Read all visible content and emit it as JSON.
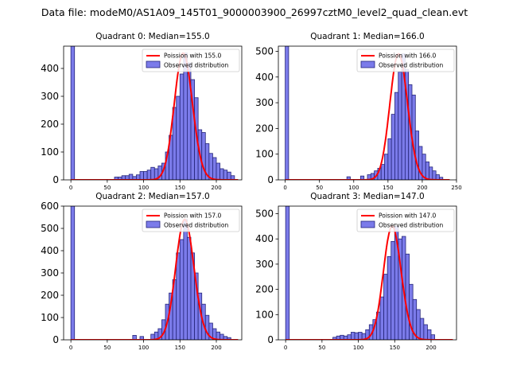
{
  "colors": {
    "poisson": "#ff0000",
    "bar_fill": "#7b7bea",
    "bar_edge": "#25257a",
    "axis": "#000000"
  },
  "chart_data": {
    "suptitle": "Data file: modeM0/AS1A09_145T01_9000003900_26997cztM0_level2_quad_clean.evt",
    "panels": [
      {
        "type": "bar",
        "title": "Quadrant 0: Median=155.0",
        "median": 155.0,
        "xlim": [
          -10,
          235
        ],
        "ylim": [
          0,
          480
        ],
        "xticks": [
          "0",
          "50",
          "100",
          "150",
          "200"
        ],
        "yticks": [
          "0",
          "100",
          "200",
          "300",
          "400"
        ],
        "bin_width": 5,
        "bins": [
          [
            0,
            480
          ],
          [
            60,
            10
          ],
          [
            65,
            10
          ],
          [
            70,
            15
          ],
          [
            75,
            15
          ],
          [
            80,
            20
          ],
          [
            85,
            12
          ],
          [
            90,
            18
          ],
          [
            95,
            30
          ],
          [
            100,
            30
          ],
          [
            105,
            35
          ],
          [
            110,
            45
          ],
          [
            115,
            40
          ],
          [
            120,
            50
          ],
          [
            125,
            60
          ],
          [
            130,
            100
          ],
          [
            135,
            160
          ],
          [
            140,
            260
          ],
          [
            145,
            300
          ],
          [
            150,
            380
          ],
          [
            155,
            455
          ],
          [
            160,
            420
          ],
          [
            165,
            360
          ],
          [
            170,
            295
          ],
          [
            175,
            180
          ],
          [
            180,
            170
          ],
          [
            185,
            130
          ],
          [
            190,
            95
          ],
          [
            195,
            80
          ],
          [
            200,
            60
          ],
          [
            205,
            40
          ],
          [
            210,
            35
          ],
          [
            215,
            28
          ],
          [
            220,
            15
          ]
        ],
        "legend": [
          "Poission with 155.0",
          "Observed distribution"
        ]
      },
      {
        "type": "bar",
        "title": "Quadrant 1: Median=166.0",
        "median": 166.0,
        "xlim": [
          -10,
          250
        ],
        "ylim": [
          0,
          520
        ],
        "xticks": [
          "0",
          "50",
          "100",
          "150",
          "200",
          "250"
        ],
        "yticks": [
          "0",
          "100",
          "200",
          "300",
          "400",
          "500"
        ],
        "bin_width": 5,
        "bins": [
          [
            0,
            520
          ],
          [
            90,
            12
          ],
          [
            110,
            15
          ],
          [
            120,
            20
          ],
          [
            125,
            25
          ],
          [
            130,
            35
          ],
          [
            135,
            45
          ],
          [
            140,
            60
          ],
          [
            145,
            100
          ],
          [
            150,
            160
          ],
          [
            155,
            255
          ],
          [
            160,
            340
          ],
          [
            165,
            420
          ],
          [
            170,
            490
          ],
          [
            175,
            430
          ],
          [
            180,
            370
          ],
          [
            185,
            330
          ],
          [
            190,
            190
          ],
          [
            195,
            130
          ],
          [
            200,
            100
          ],
          [
            205,
            70
          ],
          [
            210,
            50
          ],
          [
            215,
            35
          ],
          [
            220,
            20
          ],
          [
            225,
            10
          ]
        ],
        "legend": [
          "Poission with 166.0",
          "Observed distribution"
        ]
      },
      {
        "type": "bar",
        "title": "Quadrant 2: Median=157.0",
        "median": 157.0,
        "xlim": [
          -10,
          235
        ],
        "ylim": [
          0,
          600
        ],
        "xticks": [
          "0",
          "50",
          "100",
          "150",
          "200"
        ],
        "yticks": [
          "0",
          "100",
          "200",
          "300",
          "400",
          "500",
          "600"
        ],
        "bin_width": 5,
        "bins": [
          [
            0,
            600
          ],
          [
            85,
            20
          ],
          [
            95,
            15
          ],
          [
            110,
            25
          ],
          [
            115,
            35
          ],
          [
            120,
            50
          ],
          [
            125,
            90
          ],
          [
            130,
            160
          ],
          [
            135,
            210
          ],
          [
            140,
            270
          ],
          [
            145,
            390
          ],
          [
            150,
            450
          ],
          [
            155,
            540
          ],
          [
            160,
            460
          ],
          [
            165,
            390
          ],
          [
            170,
            300
          ],
          [
            175,
            210
          ],
          [
            180,
            160
          ],
          [
            185,
            110
          ],
          [
            190,
            75
          ],
          [
            195,
            50
          ],
          [
            200,
            35
          ],
          [
            205,
            25
          ],
          [
            210,
            15
          ],
          [
            215,
            10
          ]
        ],
        "legend": [
          "Poission with 157.0",
          "Observed distribution"
        ]
      },
      {
        "type": "bar",
        "title": "Quadrant 3: Median=147.0",
        "median": 147.0,
        "xlim": [
          -10,
          235
        ],
        "ylim": [
          0,
          530
        ],
        "xticks": [
          "0",
          "50",
          "100",
          "150",
          "200"
        ],
        "yticks": [
          "0",
          "100",
          "200",
          "300",
          "400",
          "500"
        ],
        "bin_width": 5,
        "bins": [
          [
            0,
            530
          ],
          [
            65,
            10
          ],
          [
            70,
            15
          ],
          [
            75,
            18
          ],
          [
            80,
            15
          ],
          [
            85,
            20
          ],
          [
            90,
            30
          ],
          [
            95,
            28
          ],
          [
            100,
            30
          ],
          [
            105,
            25
          ],
          [
            110,
            40
          ],
          [
            115,
            60
          ],
          [
            120,
            80
          ],
          [
            125,
            110
          ],
          [
            130,
            170
          ],
          [
            135,
            260
          ],
          [
            140,
            330
          ],
          [
            145,
            390
          ],
          [
            150,
            450
          ],
          [
            155,
            400
          ],
          [
            160,
            410
          ],
          [
            165,
            340
          ],
          [
            170,
            220
          ],
          [
            175,
            160
          ],
          [
            180,
            120
          ],
          [
            185,
            85
          ],
          [
            190,
            60
          ],
          [
            195,
            40
          ],
          [
            200,
            20
          ]
        ],
        "legend": [
          "Poission with 147.0",
          "Observed distribution"
        ]
      }
    ]
  }
}
